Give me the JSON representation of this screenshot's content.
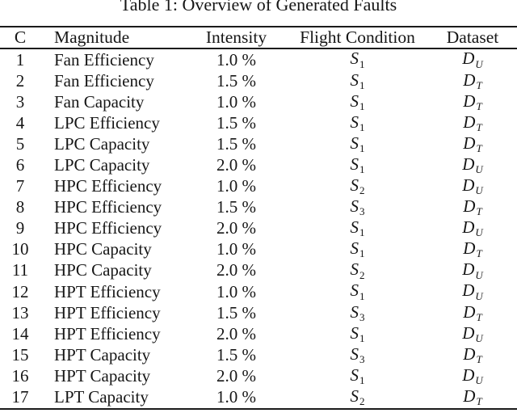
{
  "title": "Table 1: Overview of Generated Faults",
  "table": {
    "headers": [
      "C",
      "Magnitude",
      "Intensity",
      "Flight Condition",
      "Dataset"
    ],
    "rows": [
      {
        "c": "1",
        "magnitude": "Fan Efficiency",
        "intensity": "1.0 %",
        "flight_base": "S",
        "flight_sub": "1",
        "dataset_base": "D",
        "dataset_sub": "U"
      },
      {
        "c": "2",
        "magnitude": "Fan Efficiency",
        "intensity": "1.5 %",
        "flight_base": "S",
        "flight_sub": "1",
        "dataset_base": "D",
        "dataset_sub": "T"
      },
      {
        "c": "3",
        "magnitude": "Fan Capacity",
        "intensity": "1.0 %",
        "flight_base": "S",
        "flight_sub": "1",
        "dataset_base": "D",
        "dataset_sub": "T"
      },
      {
        "c": "4",
        "magnitude": "LPC Efficiency",
        "intensity": "1.5 %",
        "flight_base": "S",
        "flight_sub": "1",
        "dataset_base": "D",
        "dataset_sub": "T"
      },
      {
        "c": "5",
        "magnitude": "LPC Capacity",
        "intensity": "1.5 %",
        "flight_base": "S",
        "flight_sub": "1",
        "dataset_base": "D",
        "dataset_sub": "T"
      },
      {
        "c": "6",
        "magnitude": "LPC Capacity",
        "intensity": "2.0 %",
        "flight_base": "S",
        "flight_sub": "1",
        "dataset_base": "D",
        "dataset_sub": "U"
      },
      {
        "c": "7",
        "magnitude": "HPC Efficiency",
        "intensity": "1.0 %",
        "flight_base": "S",
        "flight_sub": "2",
        "dataset_base": "D",
        "dataset_sub": "U"
      },
      {
        "c": "8",
        "magnitude": "HPC Efficiency",
        "intensity": "1.5 %",
        "flight_base": "S",
        "flight_sub": "3",
        "dataset_base": "D",
        "dataset_sub": "T"
      },
      {
        "c": "9",
        "magnitude": "HPC Efficiency",
        "intensity": "2.0 %",
        "flight_base": "S",
        "flight_sub": "1",
        "dataset_base": "D",
        "dataset_sub": "U"
      },
      {
        "c": "10",
        "magnitude": "HPC Capacity",
        "intensity": "1.0 %",
        "flight_base": "S",
        "flight_sub": "1",
        "dataset_base": "D",
        "dataset_sub": "T"
      },
      {
        "c": "11",
        "magnitude": "HPC Capacity",
        "intensity": "2.0 %",
        "flight_base": "S",
        "flight_sub": "2",
        "dataset_base": "D",
        "dataset_sub": "U"
      },
      {
        "c": "12",
        "magnitude": "HPT Efficiency",
        "intensity": "1.0 %",
        "flight_base": "S",
        "flight_sub": "1",
        "dataset_base": "D",
        "dataset_sub": "U"
      },
      {
        "c": "13",
        "magnitude": "HPT Efficiency",
        "intensity": "1.5 %",
        "flight_base": "S",
        "flight_sub": "3",
        "dataset_base": "D",
        "dataset_sub": "T"
      },
      {
        "c": "14",
        "magnitude": "HPT Efficiency",
        "intensity": "2.0 %",
        "flight_base": "S",
        "flight_sub": "1",
        "dataset_base": "D",
        "dataset_sub": "U"
      },
      {
        "c": "15",
        "magnitude": "HPT Capacity",
        "intensity": "1.5 %",
        "flight_base": "S",
        "flight_sub": "3",
        "dataset_base": "D",
        "dataset_sub": "T"
      },
      {
        "c": "16",
        "magnitude": "HPT Capacity",
        "intensity": "2.0 %",
        "flight_base": "S",
        "flight_sub": "1",
        "dataset_base": "D",
        "dataset_sub": "U"
      },
      {
        "c": "17",
        "magnitude": "LPT Capacity",
        "intensity": "1.0 %",
        "flight_base": "S",
        "flight_sub": "2",
        "dataset_base": "D",
        "dataset_sub": "T"
      }
    ]
  }
}
